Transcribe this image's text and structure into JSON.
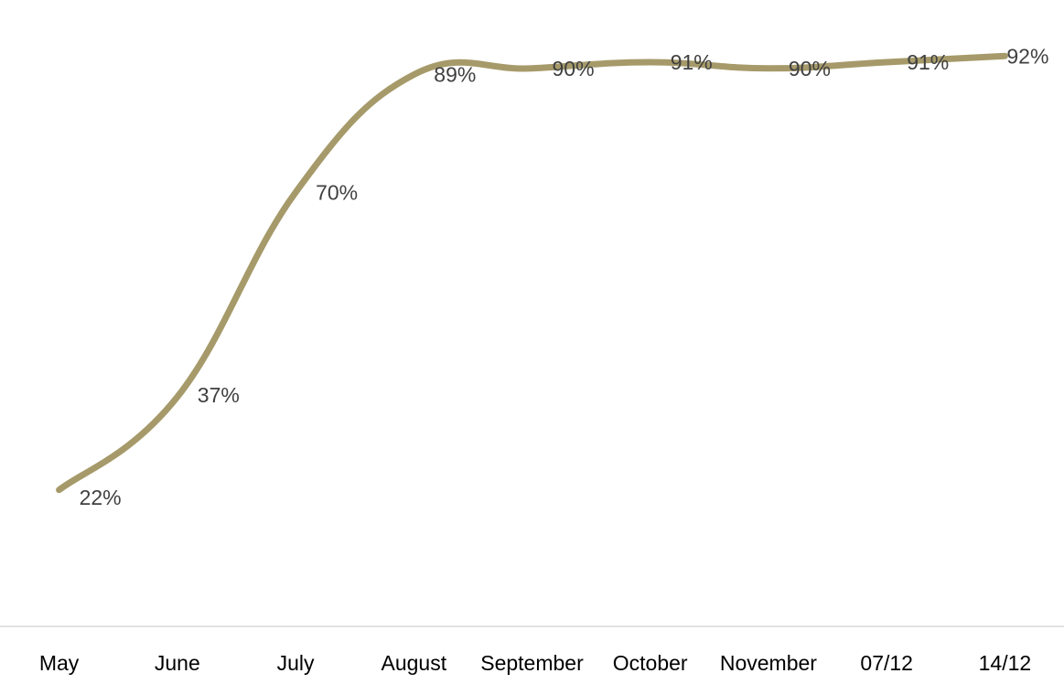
{
  "chart_data": {
    "type": "line",
    "smooth": true,
    "categories": [
      "May",
      "June",
      "July",
      "August",
      "September",
      "October",
      "November",
      "07/12",
      "14/12"
    ],
    "series": [
      {
        "values": [
          22,
          37,
          70,
          89,
          90,
          91,
          90,
          91,
          92
        ],
        "labels": [
          "22%",
          "37%",
          "70%",
          "89%",
          "90%",
          "91%",
          "90%",
          "91%",
          "92%"
        ],
        "color": "#A69A6A"
      }
    ],
    "ylim": [
      0,
      100
    ],
    "unit": "%",
    "grid": false,
    "legend": "none",
    "title": "",
    "xlabel": "",
    "ylabel": ""
  },
  "colors": {
    "line": "#A69A6A",
    "axis": "#D9D9D9",
    "data_label": "#404040",
    "tick_label": "#000000"
  }
}
